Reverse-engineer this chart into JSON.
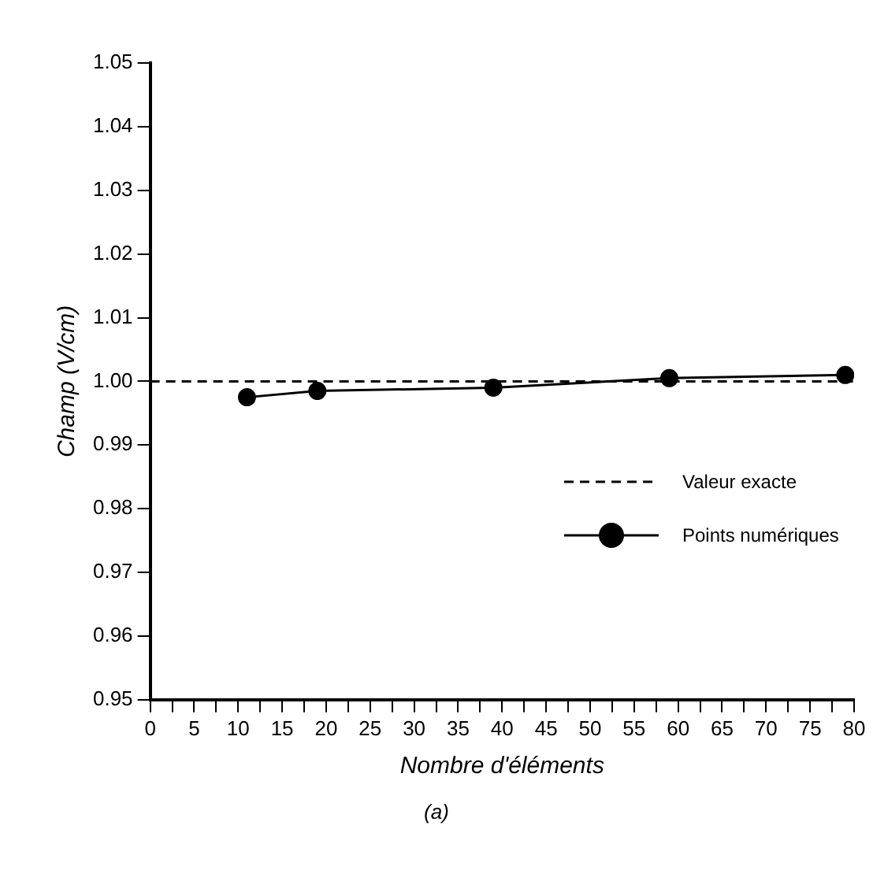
{
  "chart_data": {
    "type": "line",
    "xlabel": "Nombre d'éléments",
    "ylabel": "Champ (V/cm)",
    "annotations": [
      "(a)"
    ],
    "xlim": [
      0,
      80
    ],
    "ylim": [
      0.95,
      1.05
    ],
    "xticks": [
      0,
      {
        "value": 2.5,
        "label": null
      },
      5,
      {
        "value": 7.5,
        "label": null
      },
      10,
      {
        "value": 12.5,
        "label": null
      },
      15,
      {
        "value": 17.5,
        "label": null
      },
      20,
      {
        "value": 22.5,
        "label": null
      },
      25,
      {
        "value": 27.5,
        "label": null
      },
      30,
      {
        "value": 32.5,
        "label": null
      },
      35,
      {
        "value": 37.5,
        "label": null
      },
      40,
      {
        "value": 42.5,
        "label": null
      },
      45,
      {
        "value": 47.5,
        "label": null
      },
      50,
      {
        "value": 52.5,
        "label": null
      },
      55,
      {
        "value": 57.5,
        "label": null
      },
      60,
      {
        "value": 62.5,
        "label": null
      },
      65,
      {
        "value": 67.5,
        "label": null
      },
      70,
      {
        "value": 72.5,
        "label": null
      },
      75,
      {
        "value": 77.5,
        "label": null
      },
      80
    ],
    "yticks": [
      0.95,
      0.96,
      0.97,
      0.98,
      0.99,
      {
        "value": 1,
        "label": "1.00"
      },
      1.01,
      1.02,
      1.03,
      1.04,
      1.05
    ],
    "grid": false,
    "legend": "right",
    "series": [
      {
        "name": "Valeur exacte",
        "color": "#000000",
        "x": [
          0,
          80
        ],
        "values": [
          1,
          1
        ],
        "line_style": "dashed",
        "marker": "none"
      },
      {
        "name": "Points numériques",
        "color": "#000000",
        "x": [
          11,
          19,
          39,
          59,
          79
        ],
        "values": [
          0.9975,
          0.9985,
          0.999,
          1.0005,
          1.001
        ],
        "line_style": "solid",
        "marker": "circle"
      }
    ]
  }
}
